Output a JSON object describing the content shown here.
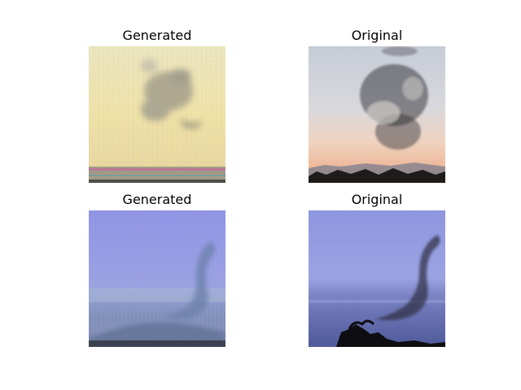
{
  "panels": [
    {
      "title": "Generated"
    },
    {
      "title": "Original"
    },
    {
      "title": "Generated"
    },
    {
      "title": "Original"
    }
  ]
}
